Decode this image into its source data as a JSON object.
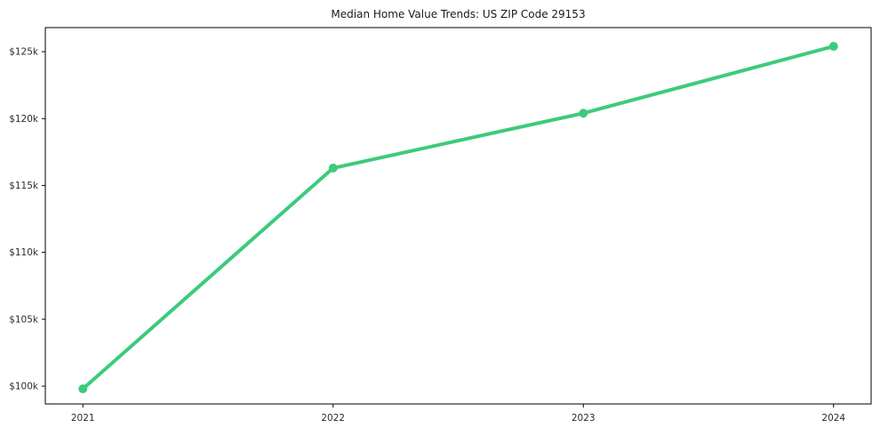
{
  "chart_data": {
    "type": "line",
    "title": "Median Home Value Trends: US ZIP Code 29153",
    "xlabel": "",
    "ylabel": "",
    "x": [
      2021,
      2022,
      2023,
      2024
    ],
    "x_tick_labels": [
      "2021",
      "2022",
      "2023",
      "2024"
    ],
    "series": [
      {
        "name": "median-home-value",
        "values": [
          99800,
          116300,
          120400,
          125400
        ],
        "color": "#3ccb7c",
        "marker": "circle"
      }
    ],
    "y_ticks": [
      100000,
      105000,
      110000,
      115000,
      120000,
      125000
    ],
    "y_tick_labels": [
      "$100k",
      "$105k",
      "$110k",
      "$115k",
      "$120k",
      "$125k"
    ],
    "xlim": [
      2020.85,
      2024.15
    ],
    "ylim": [
      98670,
      126800
    ],
    "grid": false,
    "legend_position": "none",
    "background_color": "#ffffff",
    "spine_color": "#000000",
    "tick_label_color": "#2b2b2b",
    "title_color": "#1a1a1a"
  }
}
